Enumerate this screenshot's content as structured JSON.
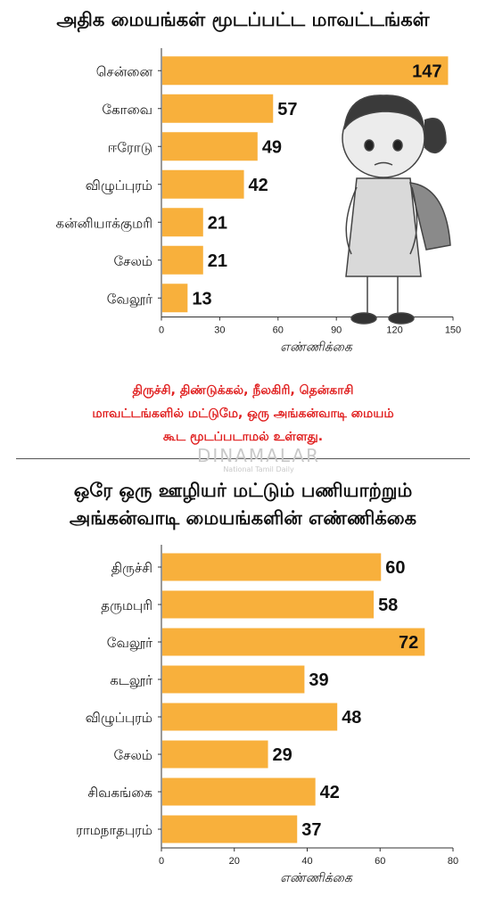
{
  "chart1": {
    "title": "அதிக மையங்கள் மூடப்பட்ட மாவட்டங்கள்",
    "chart_data": {
      "type": "bar",
      "orientation": "horizontal",
      "categories": [
        "சென்னை",
        "கோவை",
        "ஈரோடு",
        "விழுப்புரம்",
        "கன்னியாக்குமரி",
        "சேலம்",
        "வேலூர்"
      ],
      "values": [
        147,
        57,
        49,
        42,
        21,
        21,
        13
      ],
      "xlim": [
        0,
        150
      ],
      "xticks": [
        "0",
        "30",
        "60",
        "90",
        "120",
        "150"
      ],
      "xlabel": "எண்ணிக்கை",
      "bar_color": "#f8b03c"
    }
  },
  "note": {
    "line1": "திருச்சி,  திண்டுக்கல், நீலகிரி, தென்காசி",
    "line2": "மாவட்டங்களில் மட்டுமே, ஒரு அங்கன்வாடி மையம்",
    "line3": "கூட மூடப்படாமல் உள்ளது."
  },
  "watermark": {
    "brand": "DINAMALAR",
    "tagline": "National Tamil Daily"
  },
  "chart2": {
    "title_line1": "ஒரே ஒரு ஊழியர் மட்டும் பணியாற்றும்",
    "title_line2": "அங்கன்வாடி மையங்களின் எண்ணிக்கை",
    "chart_data": {
      "type": "bar",
      "orientation": "horizontal",
      "categories": [
        "திருச்சி",
        "தருமபுரி",
        "வேலூர்",
        "கடலூர்",
        "விழுப்புரம்",
        "சேலம்",
        "சிவகங்கை",
        "ராமநாதபுரம்"
      ],
      "values": [
        60,
        58,
        72,
        39,
        48,
        29,
        42,
        37
      ],
      "xlim": [
        0,
        80
      ],
      "xticks": [
        "0",
        "20",
        "40",
        "60",
        "80"
      ],
      "xlabel": "எண்ணிக்கை",
      "bar_color": "#f8b03c"
    }
  }
}
